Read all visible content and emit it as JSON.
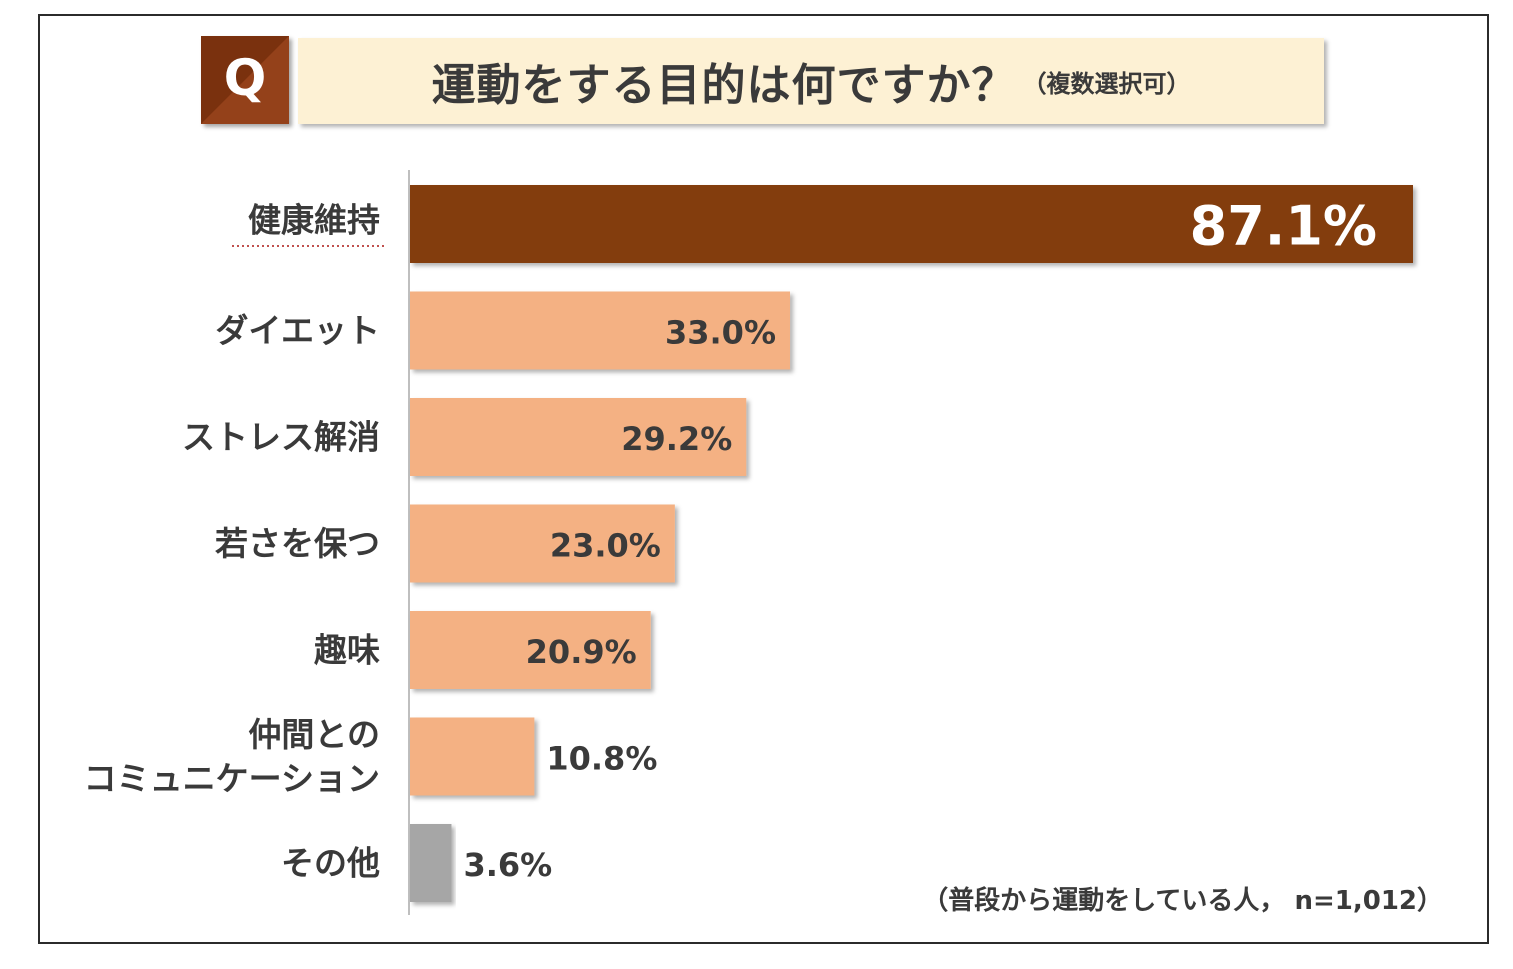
{
  "header": {
    "q_badge": "Q",
    "title": "運動をする目的は何ですか？",
    "title_note": "（複数選択可）"
  },
  "footnote": "（普段から運動をしている人， n=1,012）",
  "colors": {
    "highlight_bar": "#833c0c",
    "normal_bar": "#f4b183",
    "other_bar": "#a6a6a6",
    "q_badge": "#8b3a12",
    "title_bg": "#fdf1d4",
    "text": "#3a3a3a"
  },
  "chart_data": {
    "type": "bar",
    "orientation": "horizontal",
    "unit": "%",
    "categories": [
      [
        "健康維持"
      ],
      [
        "ダイエット"
      ],
      [
        "ストレス解消"
      ],
      [
        "若さを保つ"
      ],
      [
        "趣味"
      ],
      [
        "仲間との",
        "コミュニケーション"
      ],
      [
        "その他"
      ]
    ],
    "values": [
      87.1,
      33.0,
      29.2,
      23.0,
      20.9,
      10.8,
      3.6
    ],
    "value_labels": [
      "87.1%",
      "33.0%",
      "29.2%",
      "23.0%",
      "20.9%",
      "10.8%",
      "3.6%"
    ],
    "highlight_index": 0,
    "other_index": 6,
    "xlim": [
      0,
      100
    ],
    "grid": false,
    "legend": "none"
  }
}
